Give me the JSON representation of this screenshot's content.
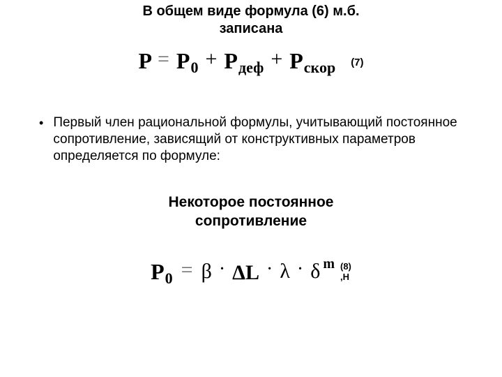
{
  "colors": {
    "background": "#ffffff",
    "text": "#000000",
    "equals_gray": "#6d6d6d"
  },
  "typography": {
    "heading_font": "Arial",
    "heading_size_pt": 15,
    "heading_weight": "bold",
    "body_font": "Arial",
    "body_size_pt": 14,
    "formula_font": "Times New Roman",
    "formula_size_pt": 24,
    "formula_weight": "bold"
  },
  "heading1": {
    "line1": "В общем виде формула (6) м.б.",
    "line2": "записана"
  },
  "formula7": {
    "lhs": "P",
    "eq_glyph": "=",
    "eq_color": "#6d6d6d",
    "term1_base": "P",
    "term1_sub": "0",
    "plus": "+",
    "term2_base": "P",
    "term2_sub": "деф",
    "term3_base": "P",
    "term3_sub": "скор",
    "eqnum": "(7)"
  },
  "bullet": {
    "marker": "•",
    "text": "Первый член рациональной формулы, учитывающий постоянное сопротивление, зависящий от конструктивных параметров определяется по формуле:"
  },
  "heading2": {
    "line1": "Некоторое постоянное",
    "line2": "сопротивление"
  },
  "formula8": {
    "lhs_base": "P",
    "lhs_sub": "0",
    "eq_glyph": "=",
    "eq_color": "#6d6d6d",
    "dot": "·",
    "beta": "β",
    "delta_upper": "Δ",
    "L": "L",
    "lambda": "λ",
    "delta_lower": "δ",
    "exp_m": "m",
    "eqnum_line1": "(8)",
    "eqnum_line2": ",Н"
  }
}
